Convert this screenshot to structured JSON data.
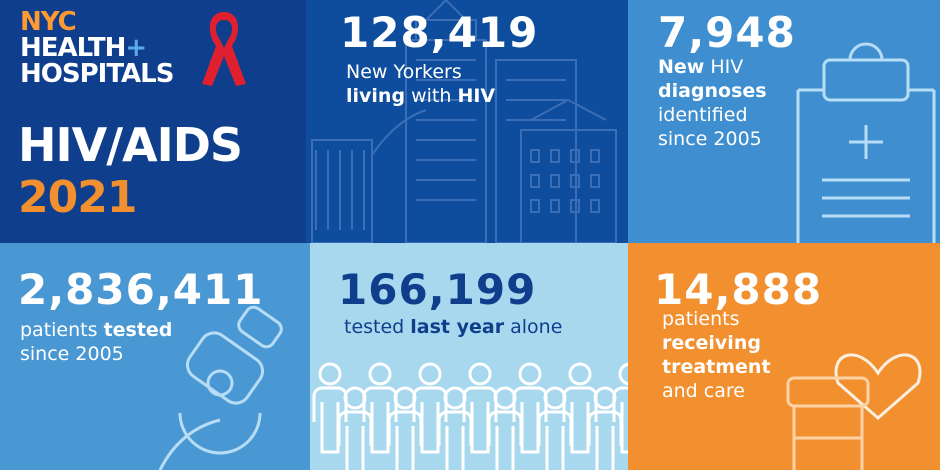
{
  "logo": {
    "line1": "NYC",
    "line2": "HEALTH",
    "plus": "+",
    "line3": "HOSPITALS"
  },
  "title": {
    "line1": "HIV/AIDS",
    "year": "2021"
  },
  "stats": {
    "living": {
      "number": "128,419",
      "line1": "New Yorkers",
      "line2_bold1": "living",
      "line2_mid": " with ",
      "line2_bold2": "HIV"
    },
    "diagnoses": {
      "number": "7,948",
      "bold1": "New",
      "rest1": " HIV",
      "bold2": "diagnoses",
      "line3": "identified",
      "line4": "since 2005"
    },
    "tested": {
      "number": "2,836,411",
      "pre": "patients ",
      "bold": "tested",
      "line2": "since 2005"
    },
    "last_year": {
      "number": "166,199",
      "pre": "tested ",
      "bold": "last year",
      "post": " alone"
    },
    "treatment": {
      "number": "14,888",
      "line1": "patients",
      "bold1": "receiving",
      "bold2": "treatment",
      "line4": "and care"
    }
  },
  "colors": {
    "navy": "#0f3f8c",
    "orange": "#f28f2e",
    "red": "#e0202e",
    "light_blue": "#a8d8ee",
    "mid_blue": "#4a98d3"
  },
  "icons": [
    "red-ribbon-icon",
    "city-skyline-icon",
    "clipboard-icon",
    "microscope-icon",
    "people-icon",
    "heart-icon",
    "pill-bottle-icon"
  ]
}
